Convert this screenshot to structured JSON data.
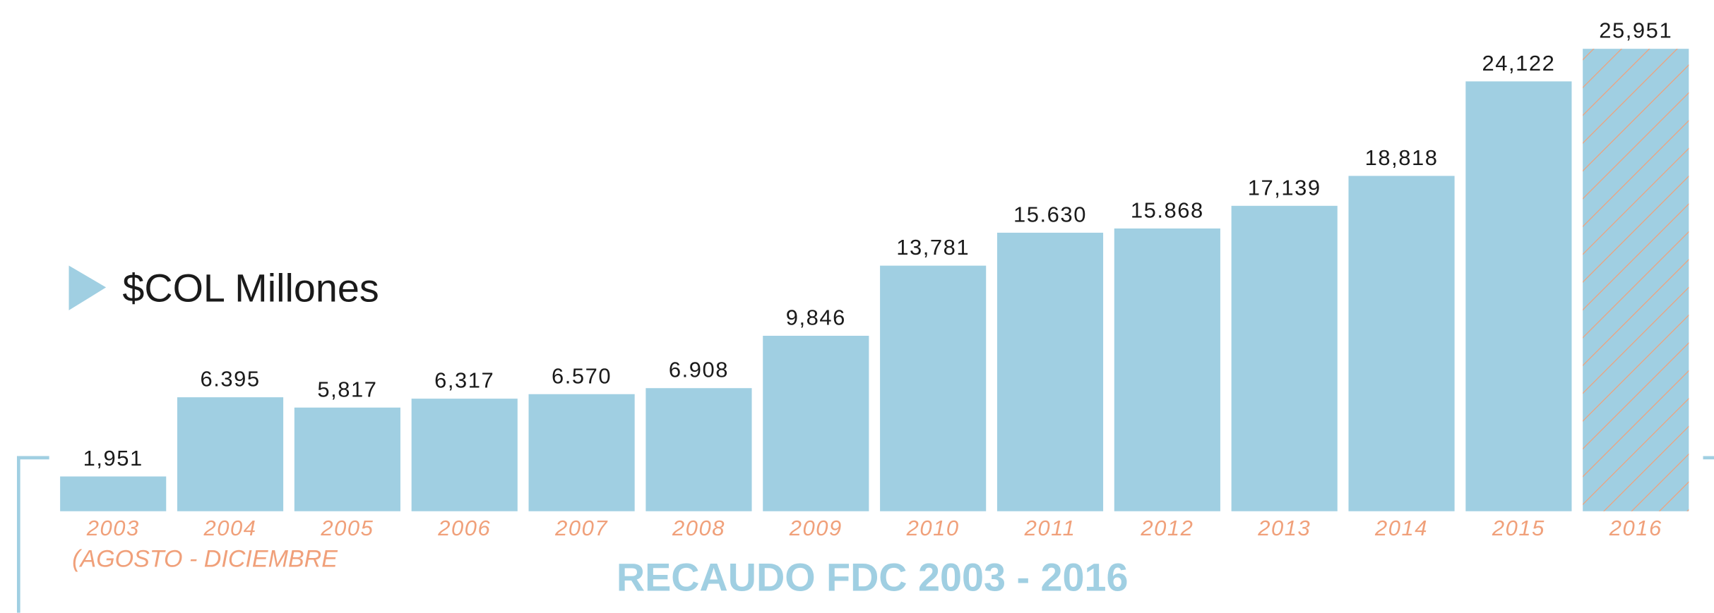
{
  "chart_data": {
    "type": "bar",
    "title": "RECAUDO FDC 2003 - 2016",
    "unit_label": "$COL Millones",
    "annotation": "(AGOSTO - DICIEMBRE",
    "categories": [
      "2003",
      "2004",
      "2005",
      "2006",
      "2007",
      "2008",
      "2009",
      "2010",
      "2011",
      "2012",
      "2013",
      "2014",
      "2015",
      "2016"
    ],
    "values": [
      1951,
      6395,
      5817,
      6317,
      6570,
      6908,
      9846,
      13781,
      15630,
      15868,
      17139,
      18818,
      24122,
      25951
    ],
    "value_labels": [
      "1,951",
      "6.395",
      "5,817",
      "6,317",
      "6.570",
      "6.908",
      "9,846",
      "13,781",
      "15.630",
      "15.868",
      "17,139",
      "18,818",
      "24,122",
      "25,951"
    ],
    "color": "#a0cfe2"
  }
}
